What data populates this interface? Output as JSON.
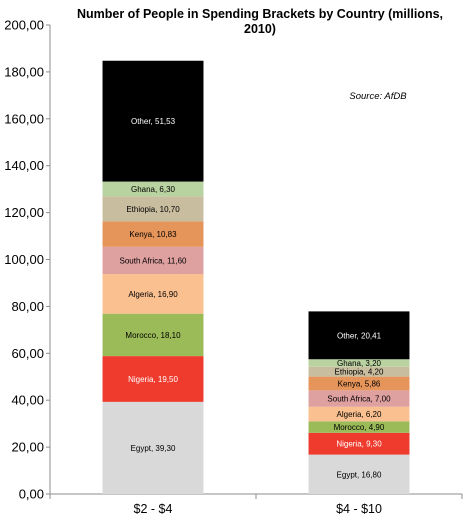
{
  "chart_data": {
    "type": "bar",
    "stacked": true,
    "title_lines": [
      "Number of People in Spending Brackets by Country (millions,",
      "2010)"
    ],
    "source": "Source: AfDB",
    "categories": [
      "$2 - $4",
      "$4 - $10"
    ],
    "ylim": [
      0,
      200
    ],
    "yticks": [
      "0,00",
      "20,00",
      "40,00",
      "60,00",
      "80,00",
      "100,00",
      "120,00",
      "140,00",
      "160,00",
      "180,00",
      "200,00"
    ],
    "grid": false,
    "series": [
      {
        "name": "Egypt",
        "color": "#d9d9d9",
        "labelColor": "#000000",
        "values": [
          39.3,
          16.8
        ],
        "labels": [
          "Egypt, 39,30",
          "Egypt, 16,80"
        ]
      },
      {
        "name": "Nigeria",
        "color": "#ee3b2e",
        "labelColor": "#ffffff",
        "values": [
          19.5,
          9.3
        ],
        "labels": [
          "Nigeria, 19,50",
          "Nigeria, 9,30"
        ]
      },
      {
        "name": "Morocco",
        "color": "#9bbb59",
        "labelColor": "#000000",
        "values": [
          18.1,
          4.9
        ],
        "labels": [
          "Morocco, 18,10",
          "Morocco, 4,90"
        ]
      },
      {
        "name": "Algeria",
        "color": "#fac090",
        "labelColor": "#000000",
        "values": [
          16.9,
          6.2
        ],
        "labels": [
          "Algeria, 16,90",
          "Algeria, 6,20"
        ]
      },
      {
        "name": "South Africa",
        "color": "#dfa0a0",
        "labelColor": "#000000",
        "values": [
          11.6,
          7.0
        ],
        "labels": [
          "South Africa, 11,60",
          "South Africa, 7,00"
        ]
      },
      {
        "name": "Kenya",
        "color": "#e5945a",
        "labelColor": "#000000",
        "values": [
          10.83,
          5.86
        ],
        "labels": [
          "Kenya, 10,83",
          "Kenya, 5,86"
        ]
      },
      {
        "name": "Ethiopia",
        "color": "#c9bda0",
        "labelColor": "#000000",
        "values": [
          10.7,
          4.2
        ],
        "labels": [
          "Ethiopia, 10,70",
          "Ethiopia, 4,20"
        ]
      },
      {
        "name": "Ghana",
        "color": "#b8d3a0",
        "labelColor": "#000000",
        "values": [
          6.3,
          3.2
        ],
        "labels": [
          "Ghana, 6,30",
          "Ghana, 3,20"
        ]
      },
      {
        "name": "Other",
        "color": "#000000",
        "labelColor": "#ffffff",
        "values": [
          51.53,
          20.41
        ],
        "labels": [
          "Other, 51,53",
          "Other, 20,41"
        ]
      }
    ]
  }
}
